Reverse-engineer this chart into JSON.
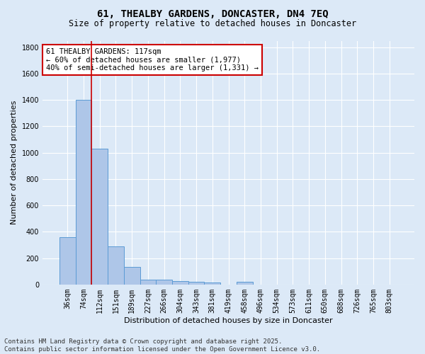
{
  "title": "61, THEALBY GARDENS, DONCASTER, DN4 7EQ",
  "subtitle": "Size of property relative to detached houses in Doncaster",
  "xlabel": "Distribution of detached houses by size in Doncaster",
  "ylabel": "Number of detached properties",
  "bar_values": [
    360,
    1400,
    1030,
    290,
    135,
    38,
    35,
    25,
    18,
    15,
    0,
    18,
    0,
    0,
    0,
    0,
    0,
    0,
    0,
    0,
    0
  ],
  "bin_labels": [
    "36sqm",
    "74sqm",
    "112sqm",
    "151sqm",
    "189sqm",
    "227sqm",
    "266sqm",
    "304sqm",
    "343sqm",
    "381sqm",
    "419sqm",
    "458sqm",
    "496sqm",
    "534sqm",
    "573sqm",
    "611sqm",
    "650sqm",
    "688sqm",
    "726sqm",
    "765sqm",
    "803sqm"
  ],
  "bar_color": "#aec6e8",
  "bar_edge_color": "#5b9bd5",
  "vline_color": "#cc0000",
  "vline_x_index": 1.5,
  "annotation_text": "61 THEALBY GARDENS: 117sqm\n← 60% of detached houses are smaller (1,977)\n40% of semi-detached houses are larger (1,331) →",
  "annotation_box_color": "#ffffff",
  "annotation_box_edgecolor": "#cc0000",
  "ylim": [
    0,
    1850
  ],
  "yticks": [
    0,
    200,
    400,
    600,
    800,
    1000,
    1200,
    1400,
    1600,
    1800
  ],
  "background_color": "#dce9f7",
  "footer_text": "Contains HM Land Registry data © Crown copyright and database right 2025.\nContains public sector information licensed under the Open Government Licence v3.0.",
  "title_fontsize": 10,
  "subtitle_fontsize": 8.5,
  "annotation_fontsize": 7.5,
  "ylabel_fontsize": 8,
  "xlabel_fontsize": 8,
  "tick_fontsize": 7,
  "footer_fontsize": 6.5
}
